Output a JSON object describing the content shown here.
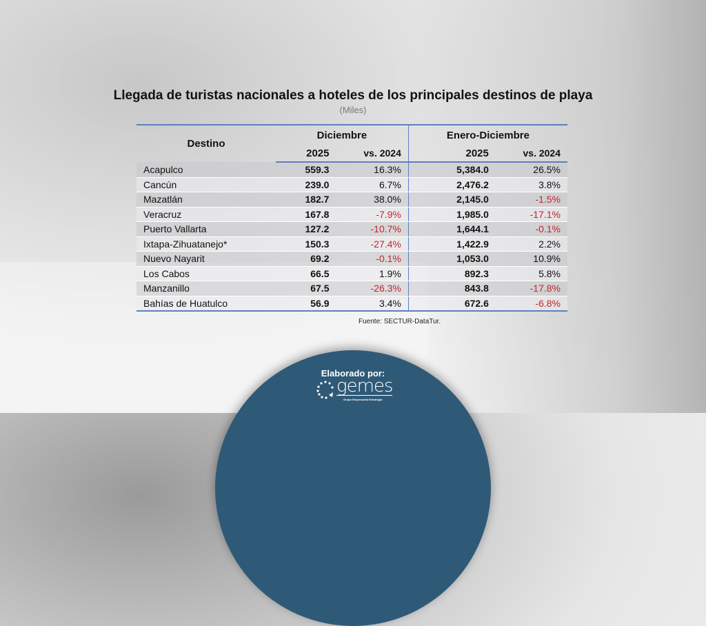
{
  "title": "Llegada de turistas nacionales a hoteles de los principales destinos de playa",
  "subtitle": "(Miles)",
  "table": {
    "col_destino": "Destino",
    "group_dic": "Diciembre",
    "group_ene": "Enero-Diciembre",
    "sub_2025": "2025",
    "sub_vs": "vs. 2024",
    "rows": [
      {
        "destino": "Acapulco",
        "dic": "559.3",
        "dic_vs": "16.3%",
        "ene": "5,384.0",
        "ene_vs": "26.5%"
      },
      {
        "destino": "Cancún",
        "dic": "239.0",
        "dic_vs": "6.7%",
        "ene": "2,476.2",
        "ene_vs": "3.8%"
      },
      {
        "destino": "Mazatlán",
        "dic": "182.7",
        "dic_vs": "38.0%",
        "ene": "2,145.0",
        "ene_vs": "-1.5%"
      },
      {
        "destino": "Veracruz",
        "dic": "167.8",
        "dic_vs": "-7.9%",
        "ene": "1,985.0",
        "ene_vs": "-17.1%"
      },
      {
        "destino": "Puerto Vallarta",
        "dic": "127.2",
        "dic_vs": "-10.7%",
        "ene": "1,644.1",
        "ene_vs": "-0.1%"
      },
      {
        "destino": "Ixtapa-Zihuatanejo*",
        "dic": "150.3",
        "dic_vs": "-27.4%",
        "ene": "1,422.9",
        "ene_vs": "2.2%"
      },
      {
        "destino": "Nuevo Nayarit",
        "dic": "69.2",
        "dic_vs": "-0.1%",
        "ene": "1,053.0",
        "ene_vs": "10.9%"
      },
      {
        "destino": "Los Cabos",
        "dic": "66.5",
        "dic_vs": "1.9%",
        "ene": "892.3",
        "ene_vs": "5.8%"
      },
      {
        "destino": "Manzanillo",
        "dic": "67.5",
        "dic_vs": "-26.3%",
        "ene": "843.8",
        "ene_vs": "-17.8%"
      },
      {
        "destino": "Bahías de Huatulco",
        "dic": "56.9",
        "dic_vs": "3.4%",
        "ene": "672.6",
        "ene_vs": "-6.8%"
      }
    ]
  },
  "source": "Fuente: SECTUR-DataTur.",
  "footer": {
    "label": "Elaborado por:",
    "logo_name": "gemes",
    "logo_tagline": "Grupo Empresarial Estrategia"
  },
  "colors": {
    "accent": "#5b7fbf",
    "negative": "#c0262d",
    "footer_bg": "#2f5a77"
  }
}
